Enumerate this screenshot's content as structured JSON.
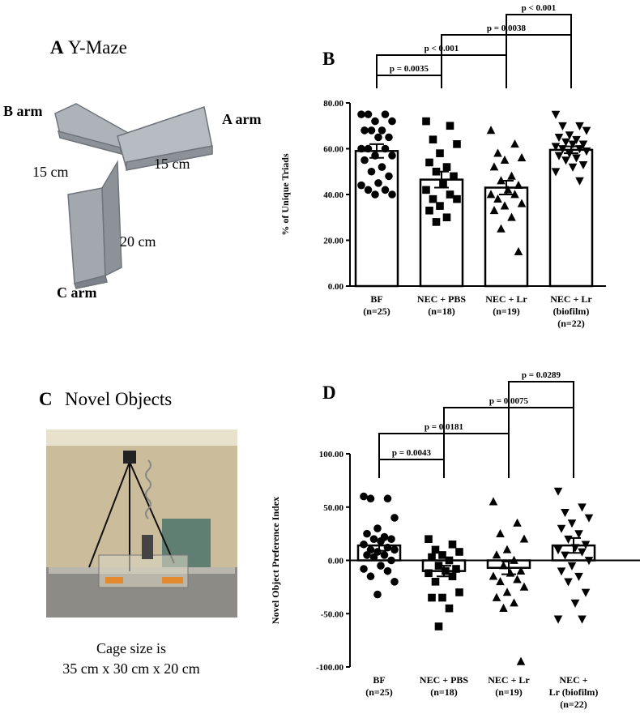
{
  "panel_a": {
    "letter": "A",
    "title": "Y-Maze",
    "arm_b": "B arm",
    "arm_a": "A arm",
    "arm_c": "C arm",
    "len_b": "15 cm",
    "len_a": "15 cm",
    "len_c": "20 cm"
  },
  "panel_c": {
    "letter": "C",
    "title": "Novel Objects",
    "caption": [
      "Cage size is",
      "35 cm x 30 cm x 20 cm"
    ]
  },
  "chart_data": [
    {
      "type": "bar",
      "title": "B",
      "y_label": "% of Unique Triads",
      "categories": [
        [
          "BF",
          "(n=25)"
        ],
        [
          "NEC + PBS",
          "(n=18)"
        ],
        [
          "NEC + Lr",
          "(n=19)"
        ],
        [
          "NEC + Lr",
          "(biofilm)",
          "(n=22)"
        ]
      ],
      "values": [
        59,
        46.5,
        43,
        59.5
      ],
      "errors": [
        3,
        3.5,
        3,
        1.5
      ],
      "markers": [
        "circle",
        "square",
        "triangle-up",
        "triangle-down"
      ],
      "points": [
        [
          75,
          75,
          75,
          72,
          72,
          68,
          68,
          68,
          65,
          65,
          60,
          60,
          60,
          57,
          57,
          55,
          52,
          50,
          48,
          45,
          44,
          42,
          42,
          40,
          40
        ],
        [
          72,
          70,
          64,
          62,
          58,
          54,
          52,
          50,
          48,
          45,
          42,
          40,
          38,
          38,
          35,
          33,
          30,
          28
        ],
        [
          68,
          62,
          58,
          56,
          55,
          52,
          48,
          46,
          44,
          42,
          40,
          40,
          38,
          36,
          35,
          33,
          30,
          25,
          15
        ],
        [
          75,
          70,
          70,
          68,
          66,
          65,
          64,
          63,
          62,
          62,
          61,
          60,
          60,
          59,
          58,
          57,
          56,
          55,
          53,
          52,
          50,
          46
        ]
      ],
      "comparisons": [
        {
          "pair": [
            0,
            1
          ],
          "label": "p = 0.0035"
        },
        {
          "pair": [
            0,
            2
          ],
          "label": "p < 0.001"
        },
        {
          "pair": [
            1,
            3
          ],
          "label": "p = 0.0038"
        },
        {
          "pair": [
            2,
            3
          ],
          "label": "p < 0.001"
        }
      ],
      "ylim": [
        0,
        80
      ],
      "yticks": [
        {
          "value": 0,
          "label": "0.00"
        },
        {
          "value": 20,
          "label": "20.00"
        },
        {
          "value": 40,
          "label": "40.00"
        },
        {
          "value": 60,
          "label": "60.00"
        },
        {
          "value": 80,
          "label": "80.00"
        }
      ],
      "color": "#000000"
    },
    {
      "type": "bar",
      "title": "D",
      "y_label": "Novel Object Preference Index",
      "categories": [
        [
          "BF",
          "(n=25)"
        ],
        [
          "NEC + PBS",
          "(n=18)"
        ],
        [
          "NEC + Lr",
          "(n=19)"
        ],
        [
          "NEC +",
          "Lr (biofilm)",
          "(n=22)"
        ]
      ],
      "values": [
        14,
        -10,
        -7,
        14
      ],
      "errors": [
        5,
        5,
        6,
        7
      ],
      "markers": [
        "circle",
        "square",
        "triangle-up",
        "triangle-down"
      ],
      "points": [
        [
          60,
          58,
          58,
          40,
          30,
          25,
          22,
          20,
          20,
          18,
          15,
          12,
          10,
          10,
          8,
          5,
          5,
          3,
          0,
          -5,
          -8,
          -10,
          -15,
          -20,
          -32
        ],
        [
          20,
          15,
          10,
          8,
          5,
          3,
          0,
          -5,
          -8,
          -10,
          -12,
          -15,
          -20,
          -30,
          -35,
          -35,
          -45,
          -62
        ],
        [
          55,
          35,
          25,
          20,
          10,
          5,
          0,
          -5,
          -10,
          -12,
          -15,
          -18,
          -20,
          -25,
          -30,
          -35,
          -40,
          -45,
          -95
        ],
        [
          65,
          50,
          45,
          40,
          35,
          30,
          25,
          20,
          15,
          12,
          10,
          8,
          5,
          0,
          -5,
          -10,
          -15,
          -20,
          -30,
          -40,
          -55,
          -55
        ]
      ],
      "comparisons": [
        {
          "pair": [
            0,
            1
          ],
          "label": "p = 0.0043"
        },
        {
          "pair": [
            0,
            2
          ],
          "label": "p = 0.0181"
        },
        {
          "pair": [
            1,
            3
          ],
          "label": "p = 0.0075"
        },
        {
          "pair": [
            2,
            3
          ],
          "label": "p = 0.0289"
        }
      ],
      "ylim": [
        -100,
        100
      ],
      "yticks": [
        {
          "value": -100,
          "label": "-100.00"
        },
        {
          "value": -50,
          "label": "-50.00"
        },
        {
          "value": 0,
          "label": "0.00"
        },
        {
          "value": 50,
          "label": "50.00"
        },
        {
          "value": 100,
          "label": "100.00"
        }
      ],
      "color": "#000000"
    }
  ]
}
